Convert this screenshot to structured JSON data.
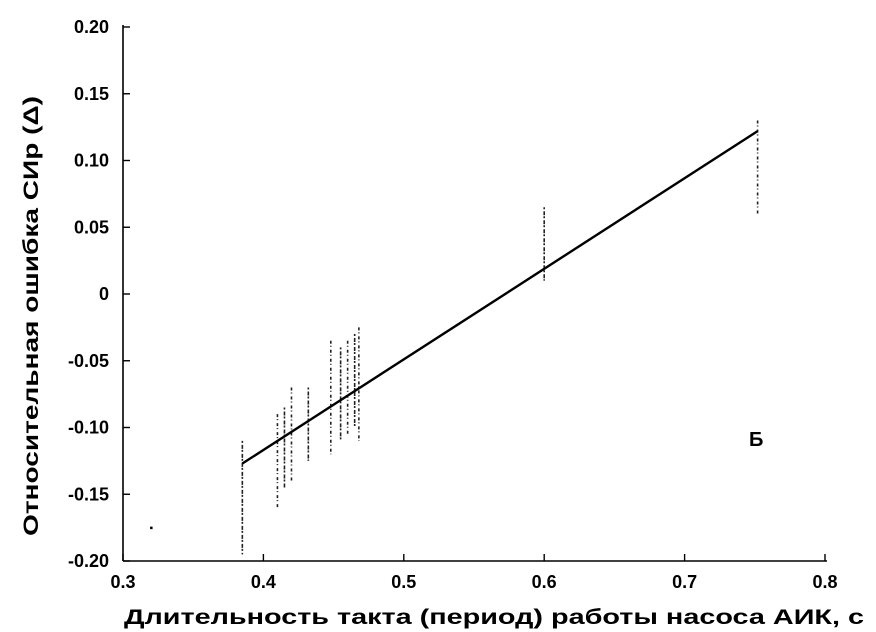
{
  "chart_data": {
    "type": "scatter",
    "xlabel": "Длительность такта (период) работы насоса АИК, с",
    "ylabel": "Относительная ошибка СИр (Δ)",
    "panel_label": "Б",
    "xlim": [
      0.3,
      0.8
    ],
    "ylim": [
      -0.2,
      0.2
    ],
    "x_ticks": [
      0.3,
      0.4,
      0.5,
      0.6,
      0.7,
      0.8
    ],
    "x_tick_labels": [
      "0.3",
      "0.4",
      "0.5",
      "0.6",
      "0.7",
      "0.8"
    ],
    "y_ticks": [
      0.2,
      0.15,
      0.1,
      0.05,
      0,
      -0.05,
      -0.1,
      -0.15,
      -0.2
    ],
    "y_tick_labels": [
      "0.20",
      "0.15",
      "0.10",
      "0.05",
      "0",
      "-0.05",
      "-0.10",
      "-0.15",
      "-0.20"
    ],
    "grid": false,
    "series": [
      {
        "kind": "point-clusters",
        "clusters": [
          {
            "x": 0.385,
            "y_min": -0.195,
            "y_max": -0.11
          },
          {
            "x": 0.41,
            "y_min": -0.16,
            "y_max": -0.09
          },
          {
            "x": 0.415,
            "y_min": -0.145,
            "y_max": -0.085
          },
          {
            "x": 0.42,
            "y_min": -0.14,
            "y_max": -0.07
          },
          {
            "x": 0.432,
            "y_min": -0.125,
            "y_max": -0.07
          },
          {
            "x": 0.448,
            "y_min": -0.12,
            "y_max": -0.035
          },
          {
            "x": 0.455,
            "y_min": -0.11,
            "y_max": -0.04
          },
          {
            "x": 0.46,
            "y_min": -0.105,
            "y_max": -0.035
          },
          {
            "x": 0.465,
            "y_min": -0.1,
            "y_max": -0.03
          },
          {
            "x": 0.468,
            "y_min": -0.11,
            "y_max": -0.025
          },
          {
            "x": 0.6,
            "y_min": 0.01,
            "y_max": 0.065
          },
          {
            "x": 0.752,
            "y_min": 0.06,
            "y_max": 0.13
          }
        ],
        "isolated_points": [
          {
            "x": 0.32,
            "y": -0.175
          }
        ]
      },
      {
        "kind": "regression-line",
        "x": [
          0.385,
          0.752
        ],
        "y": [
          -0.127,
          0.122
        ]
      }
    ]
  }
}
